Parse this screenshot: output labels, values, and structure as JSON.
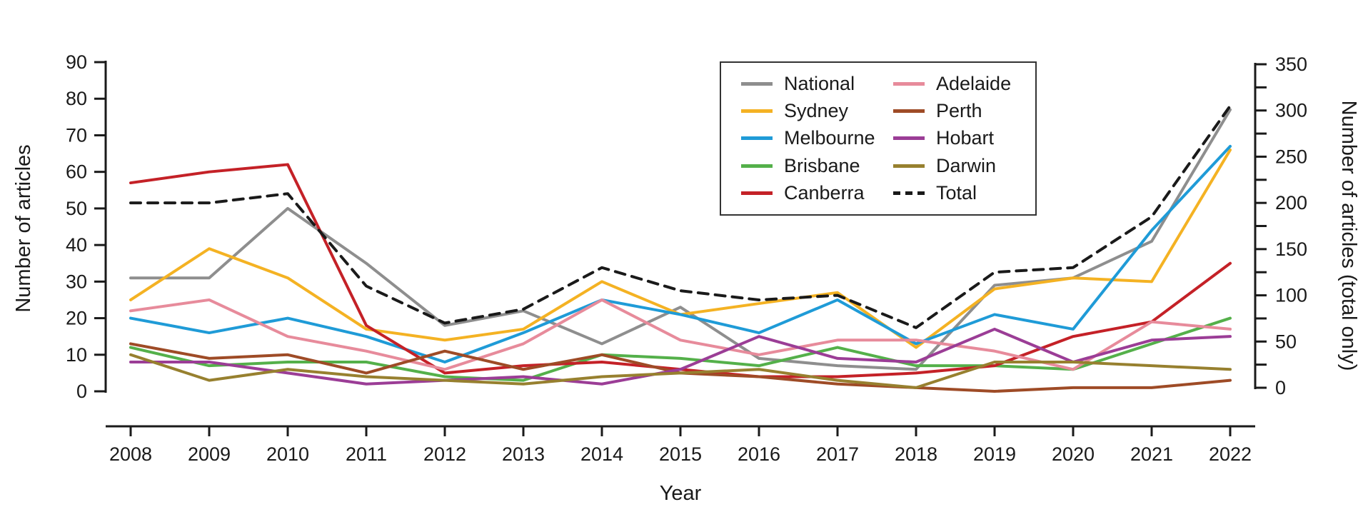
{
  "chart_data": {
    "type": "line",
    "title": "",
    "x": {
      "label": "Year",
      "categories": [
        "2008",
        "2009",
        "2010",
        "2011",
        "2012",
        "2013",
        "2014",
        "2015",
        "2016",
        "2017",
        "2018",
        "2019",
        "2020",
        "2021",
        "2022"
      ]
    },
    "y_left": {
      "label": "Number of articles",
      "min": 0,
      "max": 90,
      "tick_step": 10,
      "ticks": [
        0,
        10,
        20,
        30,
        40,
        50,
        60,
        70,
        80,
        90
      ]
    },
    "y_right": {
      "label": "Number of articles (total only)",
      "min": 0,
      "max": 350,
      "tick_step": 50,
      "minor_tick_step": 25,
      "ticks": [
        0,
        50,
        100,
        150,
        200,
        250,
        300,
        350
      ]
    },
    "grid": "off",
    "legend": {
      "position": "upper-center",
      "columns": 2,
      "order": [
        "National",
        "Sydney",
        "Melbourne",
        "Brisbane",
        "Canberra",
        "Adelaide",
        "Perth",
        "Hobart",
        "Darwin",
        "Total"
      ]
    },
    "series": [
      {
        "name": "National",
        "color": "#8e8e8e",
        "axis": "left",
        "style": "solid",
        "values": [
          31,
          31,
          50,
          35,
          18,
          22,
          13,
          23,
          9,
          7,
          6,
          29,
          31,
          41,
          77
        ]
      },
      {
        "name": "Sydney",
        "color": "#f4b223",
        "axis": "left",
        "style": "solid",
        "values": [
          25,
          39,
          31,
          17,
          14,
          17,
          30,
          21,
          24,
          27,
          12,
          28,
          31,
          30,
          66
        ]
      },
      {
        "name": "Melbourne",
        "color": "#1f9bd7",
        "axis": "left",
        "style": "solid",
        "values": [
          20,
          16,
          20,
          15,
          8,
          16,
          25,
          21,
          16,
          25,
          13,
          21,
          17,
          44,
          67
        ]
      },
      {
        "name": "Brisbane",
        "color": "#54b04a",
        "axis": "left",
        "style": "solid",
        "values": [
          12,
          7,
          8,
          8,
          4,
          3,
          10,
          9,
          7,
          12,
          7,
          7,
          6,
          13,
          20
        ]
      },
      {
        "name": "Canberra",
        "color": "#c42127",
        "axis": "left",
        "style": "solid",
        "values": [
          57,
          60,
          62,
          18,
          5,
          7,
          8,
          6,
          4,
          4,
          5,
          7,
          15,
          19,
          35
        ]
      },
      {
        "name": "Adelaide",
        "color": "#e78b9b",
        "axis": "left",
        "style": "solid",
        "values": [
          22,
          25,
          15,
          11,
          6,
          13,
          25,
          14,
          10,
          14,
          14,
          11,
          6,
          19,
          17
        ]
      },
      {
        "name": "Perth",
        "color": "#9e4b26",
        "axis": "left",
        "style": "solid",
        "values": [
          13,
          9,
          10,
          5,
          11,
          6,
          10,
          5,
          4,
          2,
          1,
          0,
          1,
          1,
          3
        ]
      },
      {
        "name": "Hobart",
        "color": "#9b3d96",
        "axis": "left",
        "style": "solid",
        "values": [
          8,
          8,
          5,
          2,
          3,
          4,
          2,
          6,
          15,
          9,
          8,
          17,
          8,
          14,
          15
        ]
      },
      {
        "name": "Darwin",
        "color": "#97802f",
        "axis": "left",
        "style": "solid",
        "values": [
          10,
          3,
          6,
          4,
          3,
          2,
          4,
          5,
          6,
          3,
          1,
          8,
          8,
          7,
          6
        ]
      },
      {
        "name": "Total",
        "color": "#1a1a1a",
        "axis": "right",
        "style": "dashed",
        "values": [
          200,
          200,
          210,
          110,
          70,
          85,
          130,
          105,
          95,
          100,
          65,
          125,
          130,
          185,
          305
        ]
      }
    ]
  }
}
